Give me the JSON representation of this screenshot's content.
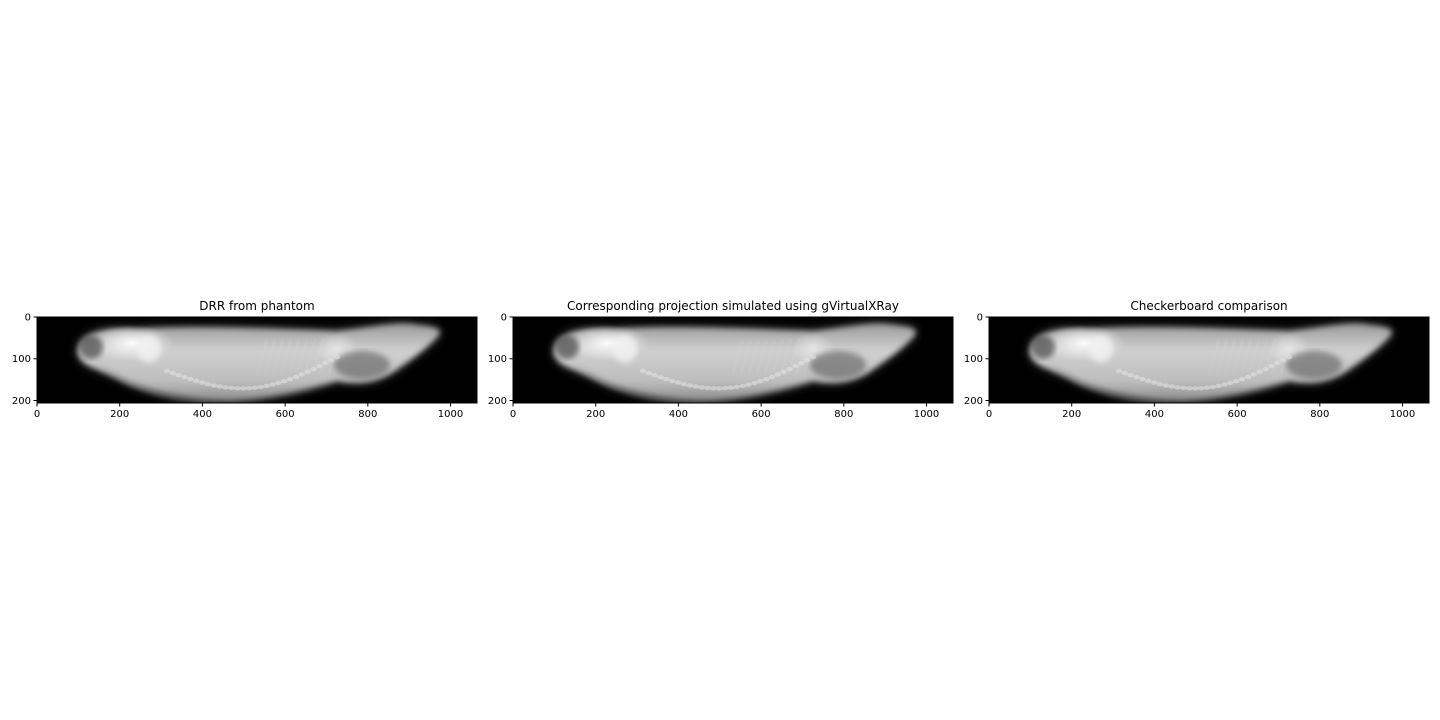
{
  "figure": {
    "panels": [
      {
        "id": "drr",
        "title": "DRR from phantom"
      },
      {
        "id": "sim",
        "title": "Corresponding projection simulated using gVirtualXRay"
      },
      {
        "id": "checker",
        "title": "Checkerboard comparison"
      }
    ],
    "image_axes": {
      "x_ticks": [
        0,
        200,
        400,
        600,
        800,
        1000
      ],
      "y_ticks": [
        0,
        100,
        200
      ],
      "x_range": [
        0,
        1064
      ],
      "y_range": [
        0,
        206
      ],
      "y_inverted": true
    },
    "colors": {
      "background": "#000000",
      "body": "#c8c8c8",
      "bright_region": "#f2f2f2"
    }
  }
}
